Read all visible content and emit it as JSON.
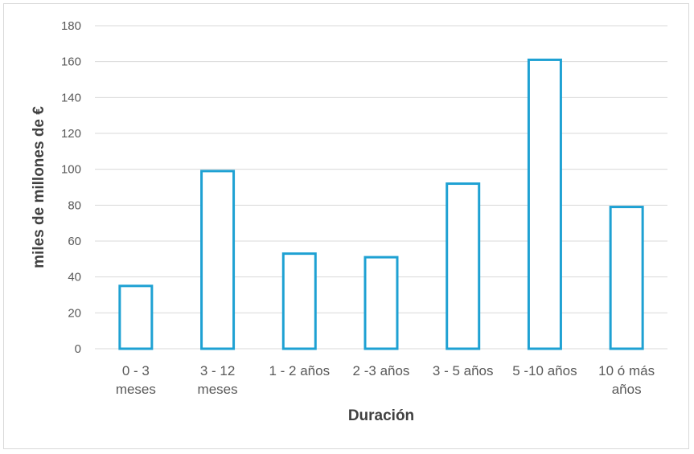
{
  "chart_data": {
    "type": "bar",
    "title": "",
    "xlabel": "Duración",
    "ylabel": "miles de millones de €",
    "categories": [
      [
        "0 - 3",
        "meses"
      ],
      [
        "3 - 12",
        "meses"
      ],
      [
        "1 - 2 años"
      ],
      [
        "2 -3 años"
      ],
      [
        "3 - 5 años"
      ],
      [
        "5 -10 años"
      ],
      [
        "10 ó más",
        "años"
      ]
    ],
    "values": [
      35,
      99,
      53,
      51,
      92,
      161,
      79
    ],
    "ylim": [
      0,
      180
    ],
    "yticks": [
      0,
      20,
      40,
      60,
      80,
      100,
      120,
      140,
      160,
      180
    ],
    "grid": true,
    "legend": "none",
    "bar_style": "outline",
    "colors": {
      "bar_stroke": "#1ea1d3",
      "bar_fill": "#ffffff",
      "grid": "#d9d9d9",
      "text": "#595959",
      "title_text": "#404040"
    }
  }
}
